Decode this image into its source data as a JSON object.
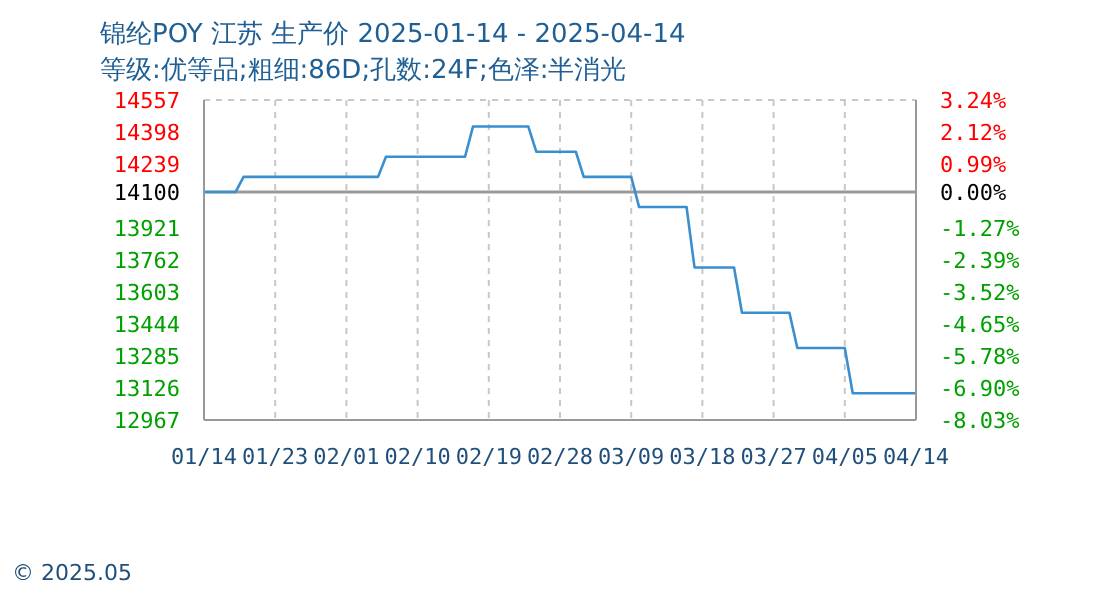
{
  "chart_data": {
    "type": "line",
    "title": "锦纶POY 江苏 生产价 2025-01-14 - 2025-04-14",
    "subtitle": "等级:优等品;粗细:86D;孔数:24F;色泽:半消光",
    "x": [
      "2025-01-14",
      "2025-01-18",
      "2025-01-19",
      "2025-02-05",
      "2025-02-06",
      "2025-02-16",
      "2025-02-17",
      "2025-02-24",
      "2025-02-25",
      "2025-03-02",
      "2025-03-03",
      "2025-03-09",
      "2025-03-10",
      "2025-03-16",
      "2025-03-17",
      "2025-03-22",
      "2025-03-23",
      "2025-03-29",
      "2025-03-30",
      "2025-04-05",
      "2025-04-06",
      "2025-04-14"
    ],
    "series": [
      {
        "color": "#3a8fd0",
        "values": [
          14100,
          14100,
          14175,
          14175,
          14275,
          14275,
          14425,
          14425,
          14300,
          14300,
          14175,
          14175,
          14025,
          14025,
          13725,
          13725,
          13500,
          13500,
          13325,
          13325,
          13100,
          13100
        ]
      }
    ],
    "xlim": [
      "2025-01-14",
      "2025-04-14"
    ],
    "xticks": [
      {
        "value": "2025-01-14",
        "label": "01/14"
      },
      {
        "value": "2025-01-23",
        "label": "01/23"
      },
      {
        "value": "2025-02-01",
        "label": "02/01"
      },
      {
        "value": "2025-02-10",
        "label": "02/10"
      },
      {
        "value": "2025-02-19",
        "label": "02/19"
      },
      {
        "value": "2025-02-28",
        "label": "02/28"
      },
      {
        "value": "2025-03-09",
        "label": "03/09"
      },
      {
        "value": "2025-03-18",
        "label": "03/18"
      },
      {
        "value": "2025-03-27",
        "label": "03/27"
      },
      {
        "value": "2025-04-05",
        "label": "04/05"
      },
      {
        "value": "2025-04-14",
        "label": "04/14"
      }
    ],
    "ylim": [
      12967,
      14557
    ],
    "yticks": [
      12967,
      13126,
      13285,
      13444,
      13603,
      13762,
      13921,
      14100,
      14239,
      14398,
      14557
    ],
    "y2lim": [
      -8.03,
      3.24
    ],
    "y2ticks": [
      {
        "value": -8.03,
        "label": "-8.03%"
      },
      {
        "value": -6.9,
        "label": "-6.90%"
      },
      {
        "value": -5.78,
        "label": "-5.78%"
      },
      {
        "value": -4.65,
        "label": "-4.65%"
      },
      {
        "value": -3.52,
        "label": "-3.52%"
      },
      {
        "value": -2.39,
        "label": "-2.39%"
      },
      {
        "value": -1.27,
        "label": "-1.27%"
      },
      {
        "value": 0,
        "label": "0.00%"
      },
      {
        "value": 0.99,
        "label": "0.99%"
      },
      {
        "value": 2.12,
        "label": "2.12%"
      },
      {
        "value": 3.24,
        "label": "3.24%"
      }
    ],
    "ref_lines": [
      {
        "axis": "y",
        "value": 14100,
        "color": "#999999"
      }
    ],
    "grid": true,
    "line_style": "solid",
    "marker": "none",
    "annotations": [
      "© 2025.05"
    ]
  }
}
